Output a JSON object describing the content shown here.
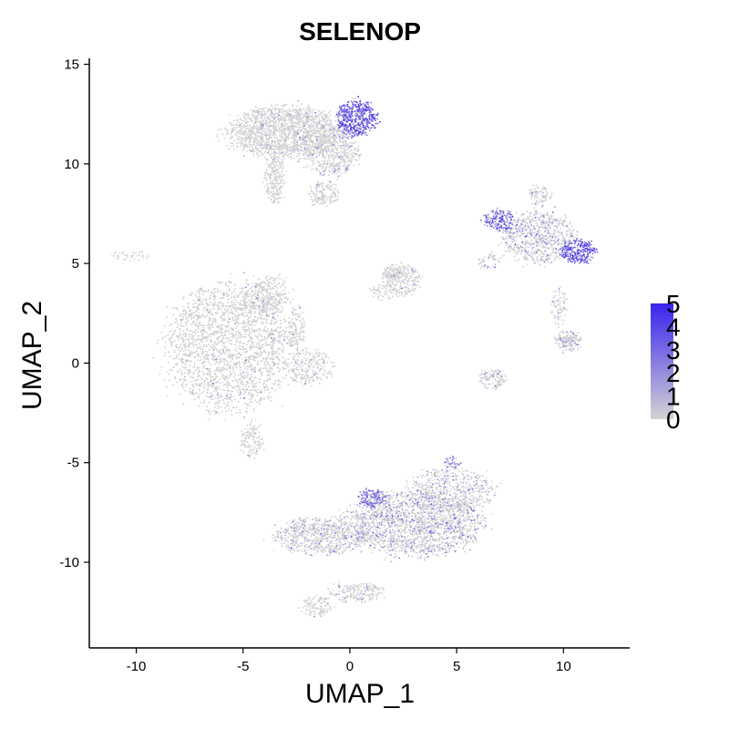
{
  "chart_data": {
    "type": "scatter",
    "title": "SELENOP",
    "xlabel": "UMAP_1",
    "ylabel": "UMAP_2",
    "xlim": [
      -12.2,
      13.1
    ],
    "ylim": [
      -14.3,
      15.3
    ],
    "x_ticks": [
      -10,
      -5,
      0,
      5,
      10
    ],
    "y_ticks": [
      -10,
      -5,
      0,
      5,
      10,
      15
    ],
    "grid": false,
    "legend": {
      "placement": "right",
      "type": "colorbar",
      "min": 0,
      "max": 5,
      "ticks": [
        0,
        1,
        2,
        3,
        4,
        5
      ],
      "low_color": "#d3d3d3",
      "high_color": "#3a23ee"
    },
    "clusters": [
      {
        "cx": -3.0,
        "cy": 11.6,
        "rx": 2.6,
        "ry": 1.3,
        "n": 1800,
        "expr": 0.22
      },
      {
        "cx": 0.3,
        "cy": 12.3,
        "rx": 0.9,
        "ry": 0.9,
        "n": 520,
        "expr": 2.6
      },
      {
        "cx": -0.8,
        "cy": 10.6,
        "rx": 1.2,
        "ry": 1.2,
        "n": 500,
        "expr": 0.35
      },
      {
        "cx": -3.5,
        "cy": 9.3,
        "rx": 0.5,
        "ry": 1.2,
        "n": 240,
        "expr": 0.12
      },
      {
        "cx": -1.2,
        "cy": 8.5,
        "rx": 0.7,
        "ry": 0.6,
        "n": 160,
        "expr": 0.12
      },
      {
        "cx": -5.6,
        "cy": 0.8,
        "rx": 2.9,
        "ry": 3.1,
        "n": 3600,
        "expr": 0.18
      },
      {
        "cx": -3.8,
        "cy": 3.4,
        "rx": 1.1,
        "ry": 1.0,
        "n": 320,
        "expr": 0.12
      },
      {
        "cx": -2.5,
        "cy": 1.8,
        "rx": 0.4,
        "ry": 1.0,
        "n": 110,
        "expr": 0.1
      },
      {
        "cx": -1.9,
        "cy": -0.2,
        "rx": 1.1,
        "ry": 0.9,
        "n": 240,
        "expr": 0.35
      },
      {
        "cx": -4.6,
        "cy": -3.9,
        "rx": 0.5,
        "ry": 0.9,
        "n": 140,
        "expr": 0.1
      },
      {
        "cx": -10.3,
        "cy": 5.4,
        "rx": 0.9,
        "ry": 0.25,
        "n": 40,
        "expr": 0.05
      },
      {
        "cx": 2.0,
        "cy": 4.5,
        "rx": 0.5,
        "ry": 0.3,
        "n": 80,
        "expr": 0.1
      },
      {
        "cx": 2.4,
        "cy": 4.2,
        "rx": 0.9,
        "ry": 0.8,
        "n": 260,
        "expr": 0.15
      },
      {
        "cx": 1.6,
        "cy": 3.6,
        "rx": 0.6,
        "ry": 0.4,
        "n": 60,
        "expr": 0.1
      },
      {
        "cx": 3.0,
        "cy": -8.1,
        "rx": 3.1,
        "ry": 1.6,
        "n": 2400,
        "expr": 0.75
      },
      {
        "cx": -1.3,
        "cy": -8.7,
        "rx": 2.2,
        "ry": 0.9,
        "n": 800,
        "expr": 0.6
      },
      {
        "cx": 4.8,
        "cy": -6.4,
        "rx": 1.9,
        "ry": 1.1,
        "n": 600,
        "expr": 0.6
      },
      {
        "cx": 1.0,
        "cy": -6.8,
        "rx": 0.6,
        "ry": 0.5,
        "n": 160,
        "expr": 2.0
      },
      {
        "cx": 0.3,
        "cy": -11.5,
        "rx": 1.3,
        "ry": 0.5,
        "n": 220,
        "expr": 0.3
      },
      {
        "cx": -1.5,
        "cy": -12.2,
        "rx": 0.7,
        "ry": 0.5,
        "n": 120,
        "expr": 0.2
      },
      {
        "cx": 4.8,
        "cy": -5.0,
        "rx": 0.4,
        "ry": 0.3,
        "n": 50,
        "expr": 1.5
      },
      {
        "cx": 8.8,
        "cy": 6.3,
        "rx": 1.7,
        "ry": 1.3,
        "n": 750,
        "expr": 0.8
      },
      {
        "cx": 7.0,
        "cy": 7.2,
        "rx": 0.7,
        "ry": 0.5,
        "n": 200,
        "expr": 2.2
      },
      {
        "cx": 10.7,
        "cy": 5.6,
        "rx": 0.8,
        "ry": 0.6,
        "n": 280,
        "expr": 2.8
      },
      {
        "cx": 8.9,
        "cy": 8.4,
        "rx": 0.5,
        "ry": 0.5,
        "n": 80,
        "expr": 0.5
      },
      {
        "cx": 10.2,
        "cy": 1.1,
        "rx": 0.6,
        "ry": 0.5,
        "n": 160,
        "expr": 0.6
      },
      {
        "cx": 9.8,
        "cy": 2.8,
        "rx": 0.4,
        "ry": 1.0,
        "n": 80,
        "expr": 0.5
      },
      {
        "cx": 6.7,
        "cy": -0.8,
        "rx": 0.6,
        "ry": 0.5,
        "n": 130,
        "expr": 0.3
      },
      {
        "cx": 6.5,
        "cy": 5.1,
        "rx": 0.5,
        "ry": 0.4,
        "n": 40,
        "expr": 1.0
      }
    ]
  }
}
